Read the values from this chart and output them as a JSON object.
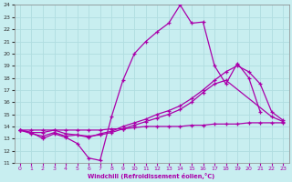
{
  "xlabel": "Windchill (Refroidissement éolien,°C)",
  "xlim": [
    -0.5,
    23.5
  ],
  "ylim": [
    11,
    24
  ],
  "xticks": [
    0,
    1,
    2,
    3,
    4,
    5,
    6,
    7,
    8,
    9,
    10,
    11,
    12,
    13,
    14,
    15,
    16,
    17,
    18,
    19,
    20,
    21,
    22,
    23
  ],
  "yticks": [
    11,
    12,
    13,
    14,
    15,
    16,
    17,
    18,
    19,
    20,
    21,
    22,
    23,
    24
  ],
  "background_color": "#c8eef0",
  "grid_color": "#b0dde0",
  "line_color": "#aa00aa",
  "line1_x": [
    0,
    1,
    2,
    3,
    4,
    5,
    6,
    7,
    8,
    9,
    10,
    11,
    12,
    13,
    14,
    15,
    16,
    17,
    18,
    19,
    20,
    21
  ],
  "line1_y": [
    13.7,
    13.5,
    13.0,
    13.4,
    13.1,
    12.6,
    11.4,
    11.2,
    14.8,
    17.8,
    20.0,
    21.0,
    21.8,
    22.5,
    24.0,
    22.5,
    22.6,
    19.0,
    17.5,
    19.2,
    18.0,
    15.2
  ],
  "line2_x": [
    0,
    1,
    2,
    3,
    4,
    5,
    6,
    7,
    8,
    9,
    10,
    11,
    12,
    13,
    14,
    15,
    16,
    17,
    18,
    19,
    20,
    21,
    22,
    23
  ],
  "line2_y": [
    13.7,
    13.4,
    13.2,
    13.5,
    13.2,
    13.3,
    13.1,
    13.4,
    13.6,
    14.0,
    14.3,
    14.6,
    15.0,
    15.3,
    15.7,
    16.3,
    17.0,
    17.8,
    18.5,
    19.0,
    18.5,
    17.5,
    15.2,
    14.5
  ],
  "line3_x": [
    0,
    1,
    2,
    3,
    4,
    5,
    6,
    7,
    8,
    9,
    10,
    11,
    12,
    13,
    14,
    15,
    16,
    17,
    18,
    22,
    23
  ],
  "line3_y": [
    13.7,
    13.5,
    13.5,
    13.7,
    13.4,
    13.3,
    13.2,
    13.3,
    13.5,
    13.8,
    14.1,
    14.4,
    14.7,
    15.0,
    15.4,
    16.0,
    16.8,
    17.5,
    17.8,
    14.8,
    14.4
  ],
  "line4_x": [
    0,
    1,
    2,
    3,
    4,
    5,
    6,
    7,
    8,
    9,
    10,
    11,
    12,
    13,
    14,
    15,
    16,
    17,
    18,
    19,
    20,
    21,
    22,
    23
  ],
  "line4_y": [
    13.7,
    13.7,
    13.7,
    13.7,
    13.7,
    13.7,
    13.7,
    13.7,
    13.8,
    13.8,
    13.9,
    14.0,
    14.0,
    14.0,
    14.0,
    14.1,
    14.1,
    14.2,
    14.2,
    14.2,
    14.3,
    14.3,
    14.3,
    14.3
  ]
}
